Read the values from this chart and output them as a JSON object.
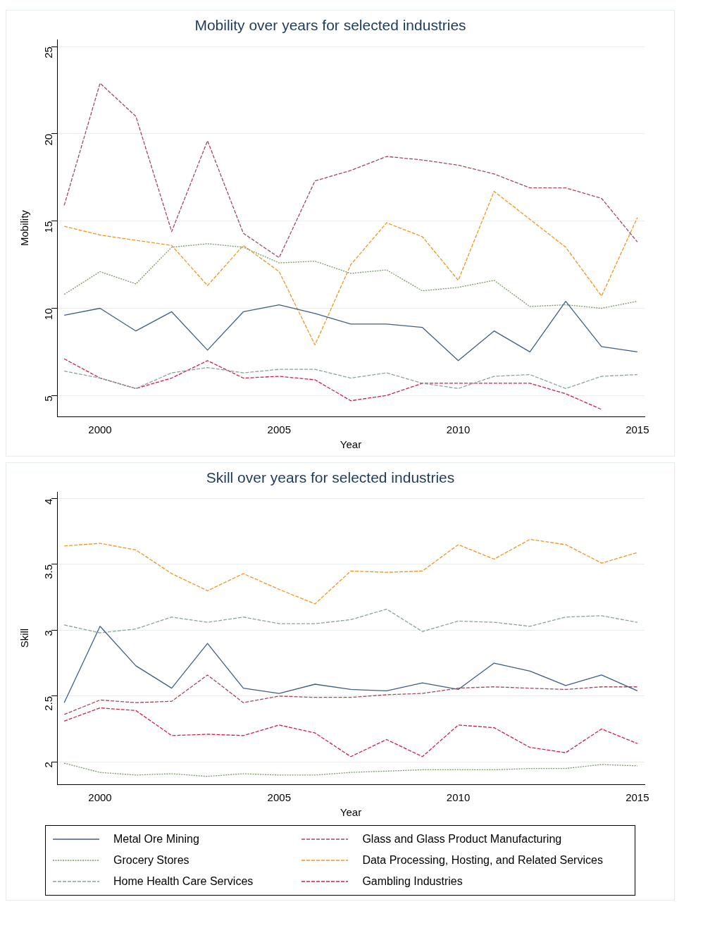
{
  "chart_data": [
    {
      "type": "line",
      "title": "Mobility over years for selected industries",
      "xlabel": "Year",
      "ylabel": "Mobility",
      "x": [
        1999,
        2000,
        2001,
        2002,
        2003,
        2004,
        2005,
        2006,
        2007,
        2008,
        2009,
        2010,
        2011,
        2012,
        2013,
        2014,
        2015
      ],
      "xlim": [
        1998.8,
        2015.2
      ],
      "xticks": [
        2000,
        2005,
        2010,
        2015
      ],
      "ylim": [
        3.8,
        25.4
      ],
      "yticks": [
        5,
        10,
        15,
        20,
        25
      ],
      "grid": "y",
      "legend": false,
      "marker": "none",
      "series": [
        {
          "color": "#3e5f85",
          "line_style": "solid",
          "values": [
            9.6,
            10.0,
            8.7,
            9.8,
            7.6,
            9.8,
            10.2,
            9.7,
            9.1,
            9.1,
            8.9,
            7.0,
            8.7,
            7.5,
            10.4,
            7.8,
            7.5
          ]
        },
        {
          "color": "#7a9a6a",
          "line_style": "dotted",
          "values": [
            10.8,
            12.1,
            11.4,
            13.5,
            13.7,
            13.5,
            12.6,
            12.7,
            12.0,
            12.2,
            11.0,
            11.2,
            11.6,
            10.1,
            10.2,
            10.0,
            10.4
          ]
        },
        {
          "color": "#8aa39b",
          "line_style": "dashed",
          "values": [
            6.4,
            6.0,
            5.4,
            6.3,
            6.6,
            6.3,
            6.5,
            6.5,
            6.0,
            6.3,
            5.7,
            5.4,
            6.1,
            6.2,
            5.4,
            6.1,
            6.2
          ]
        },
        {
          "color": "#a04a5a",
          "line_style": "dashed",
          "values": [
            15.9,
            22.9,
            21.0,
            14.4,
            19.6,
            14.3,
            12.9,
            17.3,
            17.9,
            18.7,
            18.5,
            18.2,
            17.7,
            16.9,
            16.9,
            16.3,
            13.8
          ]
        },
        {
          "color": "#f0961e",
          "line_style": "dashed",
          "values": [
            14.7,
            14.2,
            13.9,
            13.6,
            11.3,
            13.6,
            12.1,
            7.9,
            12.5,
            14.9,
            14.1,
            11.6,
            16.7,
            15.1,
            13.5,
            10.7,
            15.2
          ]
        },
        {
          "color": "#d0204a",
          "line_style": "dashed",
          "values": [
            7.1,
            6.0,
            5.4,
            6.0,
            7.0,
            6.0,
            6.1,
            5.9,
            4.7,
            5.0,
            5.7,
            5.7,
            5.7,
            5.7,
            5.1,
            4.2,
            null
          ]
        }
      ]
    },
    {
      "type": "line",
      "title": "Skill over years for selected industries",
      "xlabel": "Year",
      "ylabel": "Skill",
      "x": [
        1999,
        2000,
        2001,
        2002,
        2003,
        2004,
        2005,
        2006,
        2007,
        2008,
        2009,
        2010,
        2011,
        2012,
        2013,
        2014,
        2015
      ],
      "xlim": [
        1998.8,
        2015.2
      ],
      "xticks": [
        2000,
        2005,
        2010,
        2015
      ],
      "ylim": [
        1.83,
        4.05
      ],
      "yticks": [
        {
          "value": 2,
          "label": "2"
        },
        {
          "value": 2.5,
          "label": "2.5"
        },
        {
          "value": 3,
          "label": "3"
        },
        {
          "value": 3.5,
          "label": "3.5"
        },
        {
          "value": 4,
          "label": "4"
        }
      ],
      "grid": "y",
      "legend": "bottom",
      "marker": "none",
      "series": [
        {
          "name": "Metal Ore Mining",
          "color": "#3e5f85",
          "line_style": "solid",
          "values": [
            2.45,
            3.03,
            2.73,
            2.56,
            2.9,
            2.56,
            2.52,
            2.59,
            2.55,
            2.54,
            2.6,
            2.55,
            2.75,
            2.69,
            2.58,
            2.66,
            2.54
          ]
        },
        {
          "name": "Grocery Stores",
          "color": "#7a9a6a",
          "line_style": "dotted",
          "values": [
            1.99,
            1.92,
            1.9,
            1.91,
            1.89,
            1.91,
            1.9,
            1.9,
            1.92,
            1.93,
            1.94,
            1.94,
            1.94,
            1.95,
            1.95,
            1.98,
            1.97
          ]
        },
        {
          "name": "Home Health Care Services",
          "color": "#8aa39b",
          "line_style": "dashed",
          "values": [
            3.04,
            2.98,
            3.01,
            3.1,
            3.06,
            3.1,
            3.05,
            3.05,
            3.08,
            3.16,
            2.99,
            3.07,
            3.06,
            3.03,
            3.1,
            3.11,
            3.06
          ]
        },
        {
          "name": "Glass and Glass Product Manufacturing",
          "color": "#a04a5a",
          "line_style": "dashed",
          "values": [
            2.36,
            2.47,
            2.45,
            2.46,
            2.66,
            2.45,
            2.5,
            2.49,
            2.49,
            2.51,
            2.52,
            2.56,
            2.57,
            2.56,
            2.55,
            2.57,
            2.57
          ]
        },
        {
          "name": "Data Processing, Hosting, and Related Services",
          "color": "#f0961e",
          "line_style": "dashed",
          "values": [
            3.64,
            3.66,
            3.61,
            3.43,
            3.3,
            3.43,
            3.31,
            3.2,
            3.45,
            3.44,
            3.45,
            3.65,
            3.54,
            3.69,
            3.65,
            3.51,
            3.59
          ]
        },
        {
          "name": "Gambling Industries",
          "color": "#d0204a",
          "line_style": "dashed",
          "values": [
            2.31,
            2.41,
            2.39,
            2.2,
            2.21,
            2.2,
            2.28,
            2.22,
            2.04,
            2.17,
            2.04,
            2.28,
            2.26,
            2.11,
            2.07,
            2.25,
            2.14
          ]
        }
      ]
    }
  ]
}
